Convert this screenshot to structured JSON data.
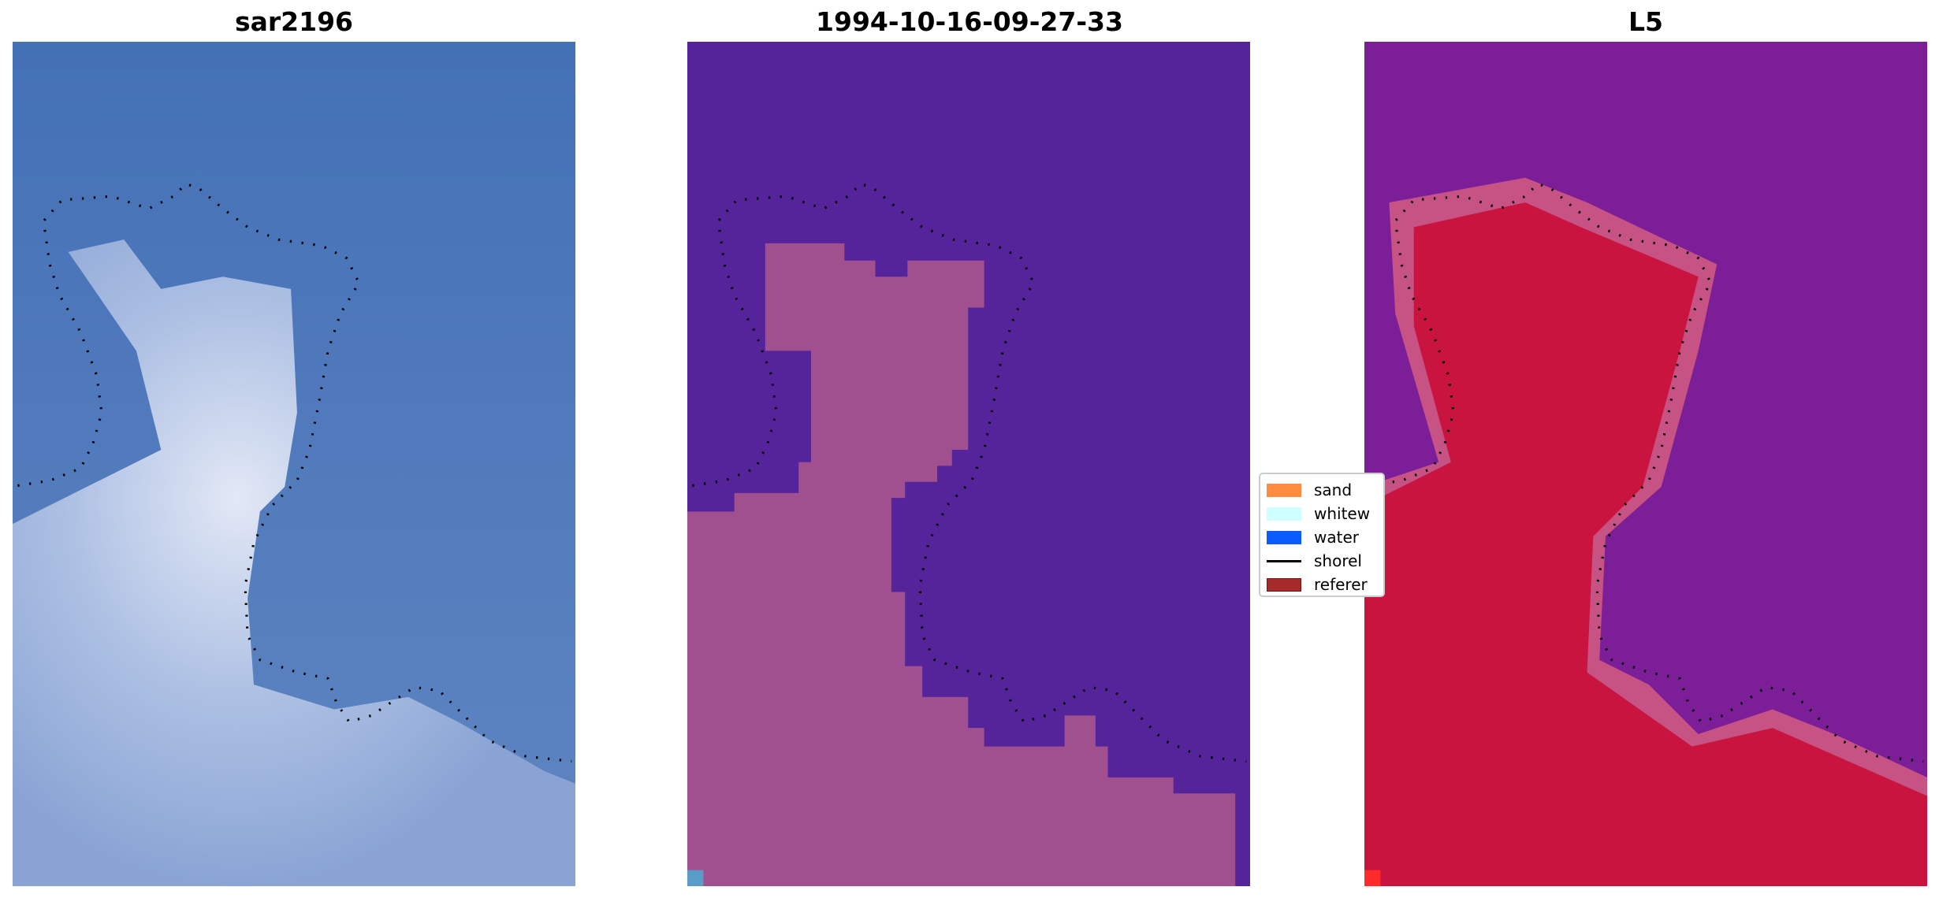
{
  "panels": [
    {
      "title": "sar2196"
    },
    {
      "title": "1994-10-16-09-27-33"
    },
    {
      "title": "L5"
    }
  ],
  "legend": {
    "items": [
      {
        "label": "sand",
        "color": "#ff8c3f",
        "kind": "patch"
      },
      {
        "label": "whitew",
        "color": "#cfffff",
        "kind": "patch"
      },
      {
        "label": "water",
        "color": "#0a5cff",
        "kind": "patch"
      },
      {
        "label": "shorel",
        "color": "#000000",
        "kind": "line"
      },
      {
        "label": "referer",
        "color": "#a52a2a",
        "kind": "patch"
      }
    ]
  },
  "colors": {
    "sar_water": "#3f6fb8",
    "sar_land": "#c8d4ee",
    "class_water": "#55239a",
    "class_land": "#a0508e",
    "l5_water": "#7c1e98",
    "l5_land": "#c8143f"
  }
}
